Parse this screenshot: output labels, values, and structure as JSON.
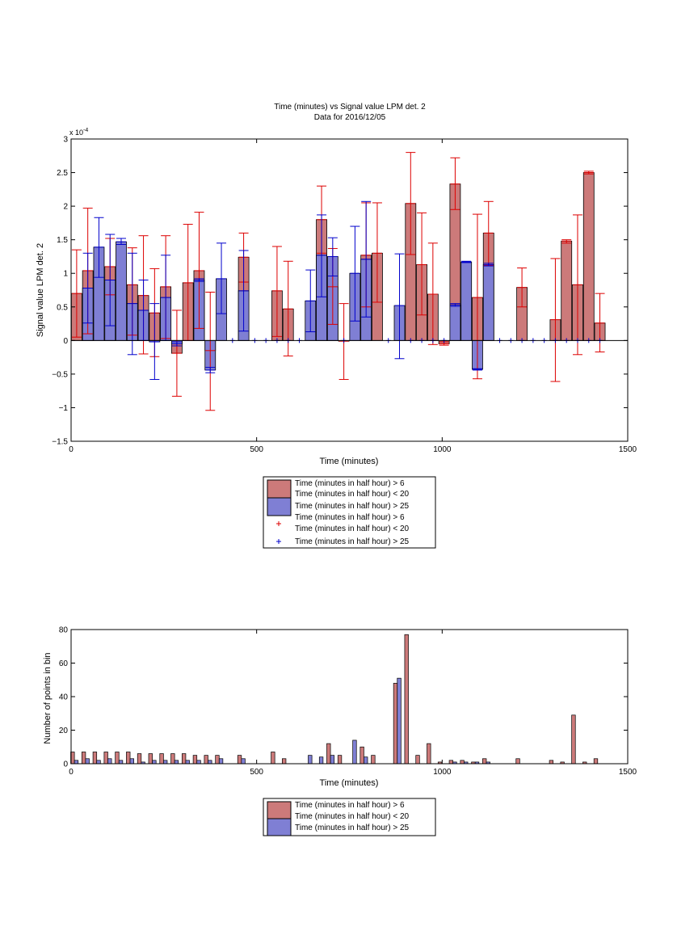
{
  "colors": {
    "red_fill": "#cc7a7a",
    "blue_fill": "#7f7fd4",
    "red_err": "#dd0000",
    "blue_err": "#0000cc"
  },
  "legend_main": {
    "red_bar": [
      "Time (minutes in half hour) > 6",
      "Time (minutes in half hour) < 20"
    ],
    "blue_bar": [
      "Time (minutes in half hour) > 25"
    ],
    "red_marker": [
      "Time (minutes in half hour) > 6",
      "Time (minutes in half hour) < 20"
    ],
    "blue_marker": [
      "Time (minutes in half hour) > 25"
    ]
  },
  "legend_hist": {
    "red_bar": [
      "Time (minutes in half hour) > 6",
      "Time (minutes in half hour) < 20"
    ],
    "blue_bar": [
      "Time (minutes in half hour) > 25"
    ]
  },
  "chart_data": [
    {
      "type": "bar",
      "title": "Time (minutes) vs Signal value LPM det. 2",
      "subtitle": "Data for 2016/12/05",
      "xlabel": "Time (minutes)",
      "ylabel": "Signal value LPM det. 2",
      "y_exponent_label": "x 10",
      "y_exponent_power": "-4",
      "xlim": [
        0,
        1500
      ],
      "ylim": [
        -1.5,
        3
      ],
      "xticks": [
        0,
        500,
        1000,
        1500
      ],
      "xtick_labels": [
        "0",
        "500",
        "1000",
        "1500"
      ],
      "yticks": [
        -1.5,
        -1,
        -0.5,
        0,
        0.5,
        1,
        1.5,
        2,
        2.5,
        3
      ],
      "ytick_labels": [
        "−1.5",
        "−1",
        "−0.5",
        "0",
        "0.5",
        "1",
        "1.5",
        "2",
        "2.5",
        "3"
      ],
      "grid": false,
      "legend_position": "below",
      "series": [
        {
          "name": "Time (minutes in half hour) > 6 & < 20",
          "x": [
            15,
            45,
            105,
            165,
            195,
            225,
            255,
            285,
            315,
            345,
            375,
            465,
            555,
            585,
            675,
            705,
            735,
            795,
            825,
            915,
            945,
            975,
            1005,
            1035,
            1095,
            1125,
            1215,
            1305,
            1335,
            1365,
            1395,
            1425
          ],
          "values": [
            0.7,
            1.04,
            1.1,
            0.83,
            0.67,
            0.41,
            0.8,
            -0.19,
            0.86,
            1.04,
            -0.15,
            1.24,
            0.74,
            0.47,
            1.8,
            0.8,
            -0.01,
            1.27,
            1.3,
            2.04,
            1.13,
            0.69,
            -0.05,
            2.33,
            0.64,
            1.6,
            0.79,
            0.31,
            1.48,
            0.83,
            2.5,
            0.26
          ],
          "err_low": [
            0.05,
            0.1,
            0.68,
            0.08,
            -0.2,
            -0.24,
            0.03,
            -0.83,
            0.0,
            0.18,
            -1.04,
            0.87,
            0.06,
            -0.23,
            1.3,
            0.24,
            -0.58,
            0.5,
            0.57,
            1.28,
            0.38,
            -0.06,
            -0.07,
            1.95,
            -0.57,
            1.12,
            0.5,
            -0.61,
            1.45,
            -0.21,
            2.48,
            -0.17
          ],
          "err_high": [
            1.35,
            1.97,
            1.52,
            1.38,
            1.56,
            1.07,
            1.56,
            0.45,
            1.73,
            1.91,
            0.72,
            1.6,
            1.4,
            1.18,
            2.3,
            1.37,
            0.55,
            2.05,
            2.05,
            2.8,
            1.9,
            1.45,
            -0.02,
            2.72,
            1.88,
            2.07,
            1.08,
            1.22,
            1.5,
            1.87,
            2.52,
            0.7
          ]
        },
        {
          "name": "Time (minutes in half hour) > 25",
          "x": [
            45,
            75,
            105,
            135,
            165,
            195,
            225,
            255,
            285,
            345,
            375,
            405,
            465,
            645,
            675,
            705,
            765,
            795,
            885,
            1035,
            1065,
            1095,
            1125
          ],
          "values": [
            0.78,
            1.39,
            0.9,
            1.47,
            0.55,
            0.45,
            -0.02,
            0.64,
            -0.05,
            0.9,
            -0.44,
            0.92,
            0.74,
            0.59,
            1.27,
            1.25,
            1.0,
            1.21,
            0.52,
            0.53,
            1.17,
            -0.43,
            1.13
          ],
          "err_low": [
            0.26,
            0.94,
            0.22,
            1.43,
            -0.21,
            0.0,
            -0.58,
            0.0,
            -0.08,
            0.88,
            -0.48,
            0.4,
            0.14,
            0.13,
            0.65,
            0.96,
            0.29,
            0.35,
            -0.27,
            0.51,
            1.16,
            -0.44,
            1.11
          ],
          "err_high": [
            1.3,
            1.83,
            1.58,
            1.52,
            1.3,
            0.9,
            0.55,
            1.27,
            -0.02,
            0.92,
            -0.4,
            1.45,
            1.34,
            1.05,
            1.87,
            1.53,
            1.7,
            2.07,
            1.29,
            0.55,
            1.18,
            -0.42,
            1.15
          ],
          "zero_markers_x": [
            435,
            495,
            525,
            555,
            585,
            615,
            735,
            855,
            915,
            945,
            975,
            1005,
            1155,
            1185,
            1215,
            1245,
            1275,
            1305,
            1335,
            1365,
            1395,
            1425
          ]
        }
      ]
    },
    {
      "type": "bar",
      "title": "",
      "xlabel": "Time (minutes)",
      "ylabel": "Number of points in bin",
      "xlim": [
        0,
        1500
      ],
      "ylim": [
        0,
        80
      ],
      "xticks": [
        0,
        500,
        1000,
        1500
      ],
      "xtick_labels": [
        "0",
        "500",
        "1000",
        "1500"
      ],
      "yticks": [
        0,
        20,
        40,
        60,
        80
      ],
      "ytick_labels": [
        "0",
        "20",
        "40",
        "60",
        "80"
      ],
      "grid": false,
      "legend_position": "below",
      "series": [
        {
          "name": "Time (minutes in half hour) > 6 & < 20",
          "x": [
            4,
            34,
            64,
            94,
            124,
            154,
            184,
            214,
            244,
            274,
            304,
            334,
            364,
            394,
            454,
            544,
            574,
            694,
            724,
            784,
            814,
            874,
            904,
            934,
            964,
            994,
            1024,
            1054,
            1084,
            1114,
            1204,
            1294,
            1324,
            1354,
            1384,
            1414
          ],
          "values": [
            7,
            7,
            7,
            7,
            7,
            7,
            6,
            6,
            6,
            6,
            6,
            5,
            5,
            5,
            5,
            7,
            3,
            12,
            5,
            10,
            5,
            48,
            77,
            5,
            12,
            1,
            2,
            2,
            1,
            3,
            3,
            2,
            1,
            29,
            1,
            3
          ]
        },
        {
          "name": "Time (minutes in half hour) > 25",
          "x": [
            14,
            44,
            74,
            104,
            134,
            164,
            194,
            224,
            254,
            284,
            314,
            344,
            374,
            404,
            464,
            644,
            674,
            704,
            764,
            794,
            884,
            1034,
            1064,
            1094,
            1124
          ],
          "values": [
            2,
            3,
            2,
            3,
            2,
            3,
            1,
            2,
            2,
            2,
            2,
            2,
            2,
            3,
            3,
            5,
            4,
            5,
            14,
            4,
            51,
            1,
            1,
            1,
            1
          ]
        }
      ]
    }
  ]
}
